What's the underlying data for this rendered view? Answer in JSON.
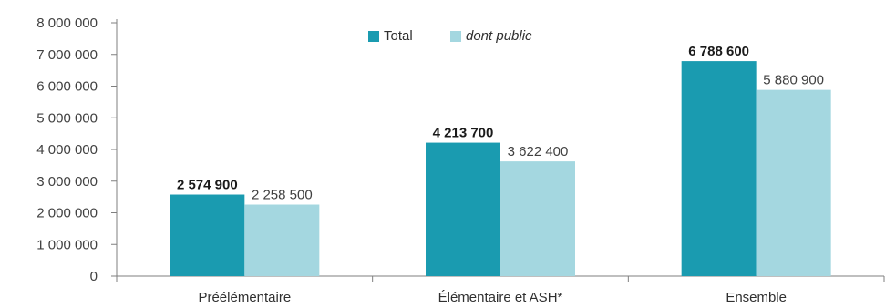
{
  "chart_data": {
    "type": "bar",
    "title": "",
    "xlabel": "",
    "ylabel": "",
    "categories": [
      "Préélémentaire",
      "Élémentaire et ASH*",
      "Ensemble"
    ],
    "series": [
      {
        "name": "Total",
        "values": [
          2574900,
          4213700,
          6788600
        ],
        "labels": [
          "2 574 900",
          "4 213 700",
          "6 788 600"
        ],
        "color": "#1a9bb0"
      },
      {
        "name": "dont public",
        "values": [
          2258500,
          3622400,
          5880900
        ],
        "labels": [
          "2 258 500",
          "3 622 400",
          "5 880 900"
        ],
        "color": "#a4d7e0"
      }
    ],
    "ylim": [
      0,
      8000000
    ],
    "yticks": [
      0,
      1000000,
      2000000,
      3000000,
      4000000,
      5000000,
      6000000,
      7000000,
      8000000
    ],
    "ytick_labels": [
      "0",
      "1 000 000",
      "2 000 000",
      "3 000 000",
      "4 000 000",
      "5 000 000",
      "6 000 000",
      "7 000 000",
      "8 000 000"
    ],
    "grid": false,
    "legend_position": "top-center"
  }
}
